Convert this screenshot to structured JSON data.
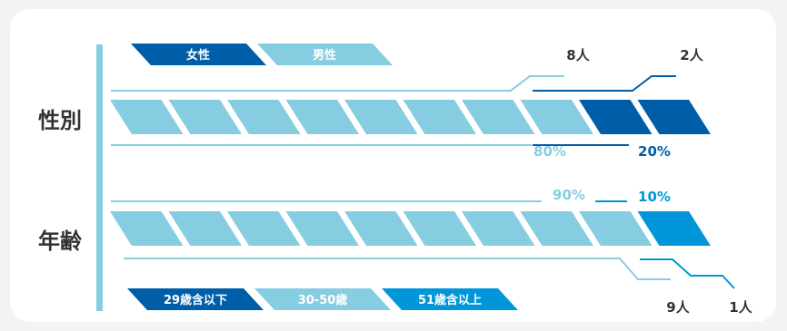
{
  "chart_data": [
    {
      "type": "bar",
      "title": "性別",
      "legend": [
        "女性",
        "男性"
      ],
      "legend_placement": "top",
      "series": [
        {
          "name": "男性",
          "value": 8,
          "label": "8人",
          "percent": 80,
          "percent_label": "80%",
          "color": "#86cde2"
        },
        {
          "name": "女性",
          "value": 2,
          "label": "2人",
          "percent": 20,
          "percent_label": "20%",
          "color": "#005ea8"
        }
      ],
      "units_total": 10
    },
    {
      "type": "bar",
      "title": "年齢",
      "legend": [
        "29歳含以下",
        "30-50歳",
        "51歳含以上"
      ],
      "legend_placement": "bottom",
      "series": [
        {
          "name": "30-50歳",
          "value": 9,
          "label": "9人",
          "percent": 90,
          "percent_label": "90%",
          "color": "#86cde2"
        },
        {
          "name": "51歳含以上",
          "value": 1,
          "label": "1人",
          "percent": 10,
          "percent_label": "10%",
          "color": "#0096d9"
        }
      ],
      "units_total": 10
    }
  ],
  "colors": {
    "light": "#86cde2",
    "dark": "#005ea8",
    "mid": "#0096d9",
    "axis": "#86cde2",
    "text": "#333333"
  }
}
